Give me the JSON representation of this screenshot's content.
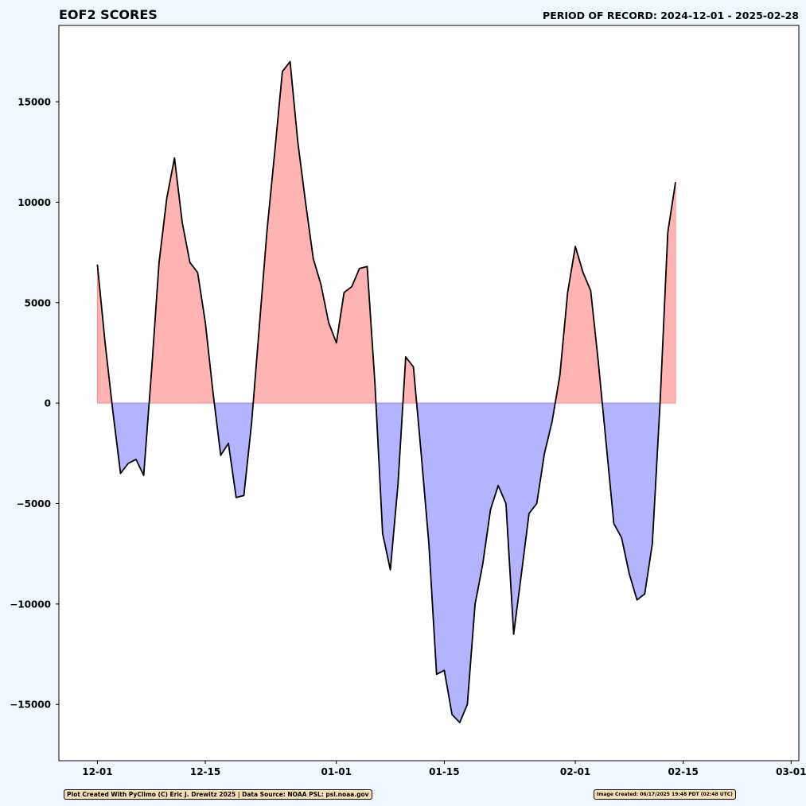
{
  "chart_data": {
    "type": "area",
    "title": "EOF2 SCORES",
    "subtitle": "PERIOD OF RECORD: 2024-12-01 - 2025-02-28",
    "xlabel": "",
    "ylabel": "",
    "x_start": "2024-12-01",
    "x_end": "2025-02-28",
    "xlim": [
      "2024-11-26",
      "2025-03-02"
    ],
    "ylim": [
      -17800,
      18800
    ],
    "x_tick_labels": [
      "12-01",
      "12-15",
      "01-01",
      "01-15",
      "02-01",
      "02-15",
      "03-01"
    ],
    "y_ticks": [
      -15000,
      -10000,
      -5000,
      0,
      5000,
      10000,
      15000
    ],
    "y_tick_labels": [
      "−15000",
      "−10000",
      "−5000",
      "0",
      "5000",
      "10000",
      "15000"
    ],
    "grid": false,
    "line_color": "#000000",
    "positive_fill": "#ffb3b3",
    "negative_fill": "#b3b3ff",
    "series": [
      {
        "x": [
          "2024-12-01",
          "2024-12-02",
          "2024-12-03",
          "2024-12-04",
          "2024-12-05",
          "2024-12-06",
          "2024-12-07",
          "2024-12-08",
          "2024-12-09",
          "2024-12-10",
          "2024-12-11",
          "2024-12-12",
          "2024-12-13",
          "2024-12-14",
          "2024-12-15",
          "2024-12-16",
          "2024-12-17",
          "2024-12-18",
          "2024-12-19",
          "2024-12-20",
          "2024-12-21",
          "2024-12-22",
          "2024-12-23",
          "2024-12-24",
          "2024-12-25",
          "2024-12-26",
          "2024-12-27",
          "2024-12-28",
          "2024-12-29",
          "2024-12-30",
          "2024-12-31",
          "2025-01-01",
          "2025-01-02",
          "2025-01-03",
          "2025-01-04",
          "2025-01-05",
          "2025-01-06",
          "2025-01-07",
          "2025-01-08",
          "2025-01-09",
          "2025-01-10",
          "2025-01-11",
          "2025-01-12",
          "2025-01-13",
          "2025-01-14",
          "2025-01-15",
          "2025-01-16",
          "2025-01-17",
          "2025-01-18",
          "2025-01-19",
          "2025-01-20",
          "2025-01-21",
          "2025-01-22",
          "2025-01-23",
          "2025-01-24",
          "2025-01-25",
          "2025-01-26",
          "2025-01-27",
          "2025-01-28",
          "2025-01-29",
          "2025-01-30",
          "2025-01-31",
          "2025-02-01",
          "2025-02-02",
          "2025-02-03",
          "2025-02-04",
          "2025-02-05",
          "2025-02-06",
          "2025-02-07",
          "2025-02-08",
          "2025-02-09",
          "2025-02-10",
          "2025-02-11",
          "2025-02-12",
          "2025-02-13",
          "2025-02-14",
          "2025-02-15",
          "2025-02-16",
          "2025-02-17",
          "2025-02-18",
          "2025-02-19",
          "2025-02-20",
          "2025-02-21",
          "2025-02-22",
          "2025-02-23",
          "2025-02-24",
          "2025-02-25",
          "2025-02-26",
          "2025-02-27",
          "2025-02-28"
        ],
        "values": [
          6900,
          3000,
          -400,
          -3500,
          -3000,
          -2800,
          -3600,
          1500,
          7000,
          10200,
          12200,
          9000,
          7000,
          6500,
          4000,
          500,
          -2600,
          -2000,
          -4700,
          -4600,
          -1000,
          3800,
          8600,
          12500,
          16500,
          17000,
          13000,
          10000,
          7200,
          5900,
          4000,
          3000,
          5500,
          5800,
          6700,
          6800,
          1000,
          -6500,
          -8300,
          -4000,
          2300,
          1800,
          -2500,
          -7000,
          -13500,
          -13300,
          -15500,
          -15900,
          -15000,
          -10000,
          -8000,
          -5300,
          -4100,
          -5000,
          -11500,
          -8500,
          -5500,
          -5000,
          -2500,
          -900,
          1400,
          5500,
          7800,
          6500,
          5600,
          2000,
          -2000,
          -6000,
          -6700,
          -8500,
          -9800,
          -9500,
          -7000,
          0,
          8500,
          11000,
          null,
          null,
          null,
          null,
          null,
          null,
          null,
          null,
          null,
          null,
          null,
          null,
          null,
          null
        ]
      }
    ]
  },
  "credits": {
    "left": "Plot Created With PyClimo (C) Eric J. Drewitz 2025 | Data Source: NOAA PSL: psl.noaa.gov",
    "right": "Image Created: 06/17/2025 19:48 PDT (02:48 UTC)"
  }
}
